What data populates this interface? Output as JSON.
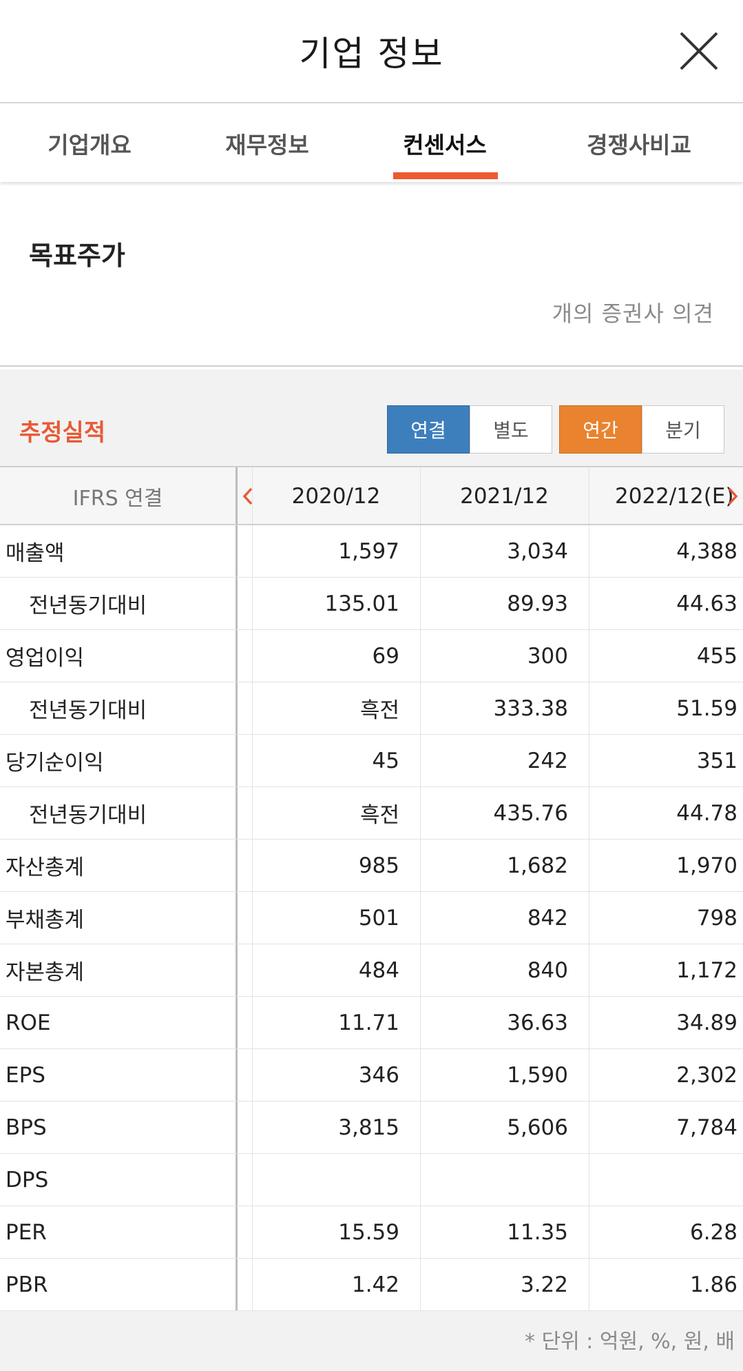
{
  "header": {
    "title": "기업 정보"
  },
  "tabs": [
    {
      "label": "기업개요"
    },
    {
      "label": "재무정보"
    },
    {
      "label": "컨센서스"
    },
    {
      "label": "경쟁사비교"
    }
  ],
  "target_price": {
    "title": "목표주가",
    "opinion_text": "개의 증권사 의견"
  },
  "estimates": {
    "title": "추정실적",
    "toggle_consolidation": {
      "consolidated": "연결",
      "separate": "별도"
    },
    "toggle_period": {
      "annual": "연간",
      "quarterly": "분기"
    },
    "table": {
      "header_label": "IFRS 연결",
      "columns": [
        "2020/12",
        "2021/12",
        "2022/12(E)"
      ],
      "rows": [
        {
          "label": "매출액",
          "values": [
            "1,597",
            "3,034",
            "4,388"
          ]
        },
        {
          "label": "전년동기대비",
          "values": [
            "135.01",
            "89.93",
            "44.63"
          ]
        },
        {
          "label": "영업이익",
          "values": [
            "69",
            "300",
            "455"
          ]
        },
        {
          "label": "전년동기대비",
          "values": [
            "흑전",
            "333.38",
            "51.59"
          ]
        },
        {
          "label": "당기순이익",
          "values": [
            "45",
            "242",
            "351"
          ]
        },
        {
          "label": "전년동기대비",
          "values": [
            "흑전",
            "435.76",
            "44.78"
          ]
        },
        {
          "label": "자산총계",
          "values": [
            "985",
            "1,682",
            "1,970"
          ]
        },
        {
          "label": "부채총계",
          "values": [
            "501",
            "842",
            "798"
          ]
        },
        {
          "label": "자본총계",
          "values": [
            "484",
            "840",
            "1,172"
          ]
        },
        {
          "label": "ROE",
          "values": [
            "11.71",
            "36.63",
            "34.89"
          ]
        },
        {
          "label": "EPS",
          "values": [
            "346",
            "1,590",
            "2,302"
          ]
        },
        {
          "label": "BPS",
          "values": [
            "3,815",
            "5,606",
            "7,784"
          ]
        },
        {
          "label": "DPS",
          "values": [
            "",
            "",
            ""
          ]
        },
        {
          "label": "PER",
          "values": [
            "15.59",
            "11.35",
            "6.28"
          ]
        },
        {
          "label": "PBR",
          "values": [
            "1.42",
            "3.22",
            "1.86"
          ]
        }
      ]
    },
    "unit_note": "* 단위 : 억원, %, 원, 배"
  },
  "colors": {
    "accent_orange": "#ee5a2f",
    "button_blue": "#3d7fbd",
    "button_orange": "#e9832f"
  }
}
